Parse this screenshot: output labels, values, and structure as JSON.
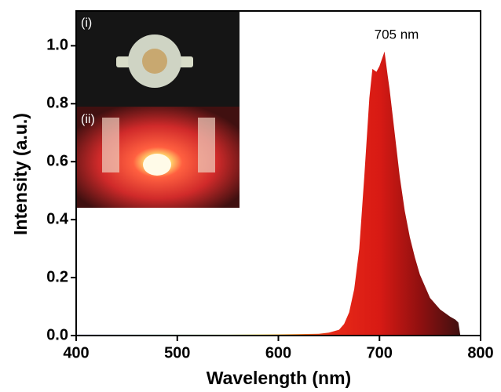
{
  "chart_data": {
    "type": "area",
    "x_label": "Wavelength (nm)",
    "y_label": "Intensity (a.u.)",
    "annotation": "705 nm",
    "inset_labels": [
      "(i)",
      "(ii)"
    ],
    "x": [
      400,
      450,
      500,
      550,
      600,
      640,
      650,
      660,
      665,
      670,
      675,
      680,
      685,
      690,
      693,
      697,
      700,
      703,
      705,
      708,
      710,
      715,
      720,
      725,
      730,
      735,
      740,
      750,
      760,
      770,
      775,
      778,
      780
    ],
    "values": [
      0.003,
      0.003,
      0.003,
      0.003,
      0.004,
      0.006,
      0.01,
      0.02,
      0.04,
      0.08,
      0.16,
      0.3,
      0.55,
      0.82,
      0.92,
      0.91,
      0.93,
      0.96,
      0.98,
      0.9,
      0.85,
      0.7,
      0.55,
      0.43,
      0.34,
      0.27,
      0.21,
      0.13,
      0.09,
      0.065,
      0.055,
      0.045,
      0.0
    ],
    "xlim": [
      400,
      800
    ],
    "ylim": [
      0,
      1.12
    ],
    "xticks": [
      400,
      500,
      600,
      700,
      800
    ],
    "yticks": [
      {
        "value": 0,
        "label": "0.0"
      },
      {
        "value": 0.2,
        "label": "0.2"
      },
      {
        "value": 0.4,
        "label": "0.4"
      },
      {
        "value": 0.6,
        "label": "0.6"
      },
      {
        "value": 0.8,
        "label": "0.8"
      },
      {
        "value": 1.0,
        "label": "1.0"
      }
    ]
  }
}
